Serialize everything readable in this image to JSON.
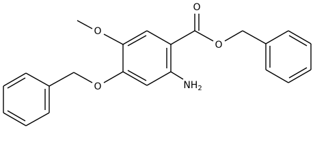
{
  "atoms": [
    {
      "symbol": "O"
    },
    {
      "symbol": "O"
    },
    {
      "symbol": "O"
    },
    {
      "symbol": "O"
    },
    {
      "symbol": "NH",
      "subscript": "2"
    }
  ]
}
